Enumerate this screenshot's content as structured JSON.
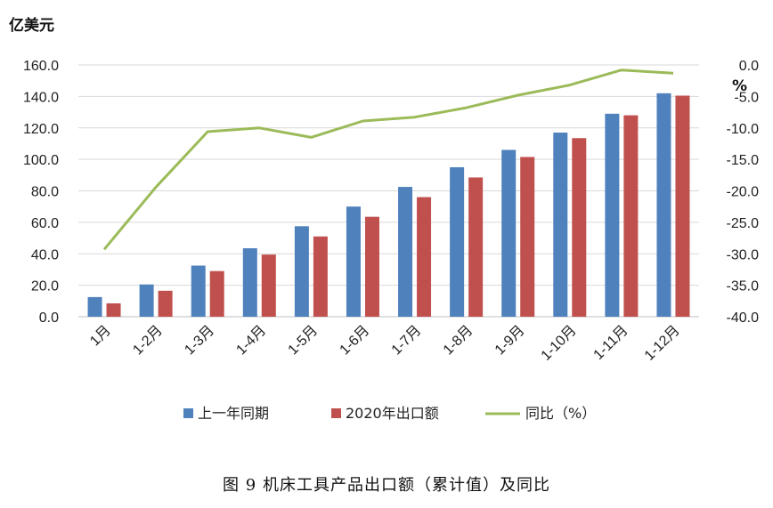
{
  "chart_data": {
    "type": "bar",
    "title": "",
    "caption": "图 9  机床工具产品出口额（累计值）及同比",
    "categories": [
      "1月",
      "1-2月",
      "1-3月",
      "1-4月",
      "1-5月",
      "1-6月",
      "1-7月",
      "1-8月",
      "1-9月",
      "1-10月",
      "1-11月",
      "1-12月"
    ],
    "y_left": {
      "label": "亿美元",
      "min": 0,
      "max": 160,
      "step": 20,
      "tick_labels": [
        "0.0",
        "20.0",
        "40.0",
        "60.0",
        "80.0",
        "100.0",
        "120.0",
        "140.0",
        "160.0"
      ]
    },
    "y_right": {
      "label": "%",
      "min": -40,
      "max": 0,
      "step": 5,
      "tick_labels": [
        "-40.0",
        "-35.0",
        "-30.0",
        "-25.0",
        "-20.0",
        "-15.0",
        "-10.0",
        "-5.0",
        "0.0"
      ]
    },
    "grid": true,
    "legend_position": "bottom",
    "series": [
      {
        "name": "上一年同期",
        "kind": "bar",
        "axis": "left",
        "color": "#4F81BD",
        "values": [
          12.5,
          20.5,
          32.5,
          43.5,
          57.5,
          70.0,
          82.5,
          95.0,
          106.0,
          117.0,
          129.0,
          142.0
        ]
      },
      {
        "name": "2020年出口额",
        "kind": "bar",
        "axis": "left",
        "color": "#C0504D",
        "values": [
          8.5,
          16.5,
          29.0,
          39.5,
          51.0,
          63.5,
          76.0,
          88.5,
          101.5,
          113.5,
          128.0,
          140.5
        ]
      },
      {
        "name": "同比（%）",
        "kind": "line",
        "axis": "right",
        "color": "#9BBB59",
        "values": [
          -29.3,
          -19.4,
          -10.6,
          -10.0,
          -11.5,
          -8.9,
          -8.3,
          -6.8,
          -4.8,
          -3.2,
          -0.8,
          -1.3
        ]
      }
    ]
  }
}
